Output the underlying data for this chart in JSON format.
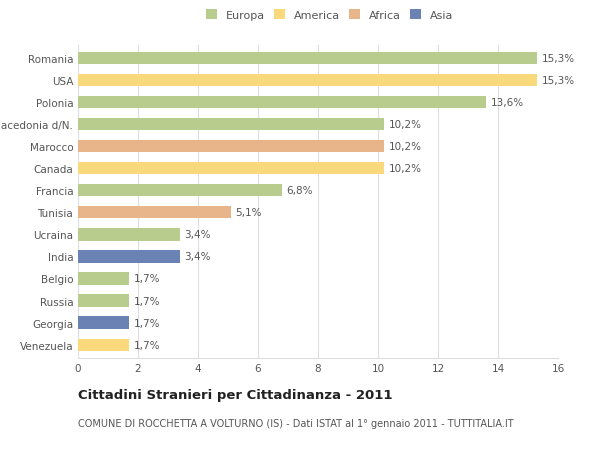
{
  "categories": [
    "Venezuela",
    "Georgia",
    "Russia",
    "Belgio",
    "India",
    "Ucraina",
    "Tunisia",
    "Francia",
    "Canada",
    "Marocco",
    "Macedonia d/N.",
    "Polonia",
    "USA",
    "Romania"
  ],
  "values": [
    1.7,
    1.7,
    1.7,
    1.7,
    3.4,
    3.4,
    5.1,
    6.8,
    10.2,
    10.2,
    10.2,
    13.6,
    15.3,
    15.3
  ],
  "labels": [
    "1,7%",
    "1,7%",
    "1,7%",
    "1,7%",
    "3,4%",
    "3,4%",
    "5,1%",
    "6,8%",
    "10,2%",
    "10,2%",
    "10,2%",
    "13,6%",
    "15,3%",
    "15,3%"
  ],
  "colors": [
    "#f9d97c",
    "#6b82b5",
    "#b8cc8e",
    "#b8cc8e",
    "#6b82b5",
    "#b8cc8e",
    "#e8b48a",
    "#b8cc8e",
    "#f9d97c",
    "#e8b48a",
    "#b8cc8e",
    "#b8cc8e",
    "#f9d97c",
    "#b8cc8e"
  ],
  "legend": {
    "Europa": "#b8cc8e",
    "America": "#f9d97c",
    "Africa": "#e8b48a",
    "Asia": "#6b82b5"
  },
  "xlim": [
    0,
    16
  ],
  "xticks": [
    0,
    2,
    4,
    6,
    8,
    10,
    12,
    14,
    16
  ],
  "title": "Cittadini Stranieri per Cittadinanza - 2011",
  "subtitle": "COMUNE DI ROCCHETTA A VOLTURNO (IS) - Dati ISTAT al 1° gennaio 2011 - TUTTITALIA.IT",
  "background_color": "#ffffff",
  "grid_color": "#dddddd",
  "bar_height": 0.55,
  "label_fontsize": 7.5,
  "tick_fontsize": 7.5,
  "legend_fontsize": 8.0,
  "title_fontsize": 9.5,
  "subtitle_fontsize": 7.0
}
